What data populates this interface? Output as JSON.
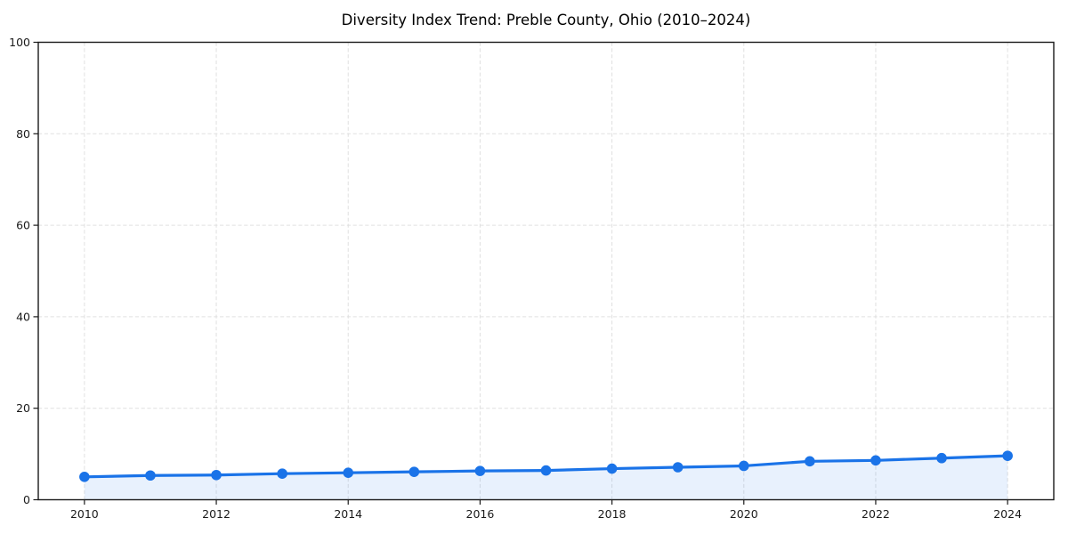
{
  "chart_data": {
    "type": "line",
    "title": "Diversity Index Trend: Preble County, Ohio (2010–2024)",
    "x": [
      2010,
      2011,
      2012,
      2013,
      2014,
      2015,
      2016,
      2017,
      2018,
      2019,
      2020,
      2021,
      2022,
      2023,
      2024
    ],
    "series": [
      {
        "name": "Diversity Index",
        "values": [
          5.0,
          5.3,
          5.4,
          5.7,
          5.9,
          6.1,
          6.3,
          6.4,
          6.8,
          7.1,
          7.4,
          8.4,
          8.6,
          9.1,
          9.6
        ],
        "line_color": "#1a73e8",
        "marker": "circle",
        "area_fill": true,
        "fill_opacity": 0.1
      }
    ],
    "xlabel": "",
    "ylabel": "",
    "xlim": [
      2009.3,
      2024.7
    ],
    "ylim": [
      0,
      100
    ],
    "xticks": [
      2010,
      2012,
      2014,
      2016,
      2018,
      2020,
      2022,
      2024
    ],
    "yticks": [
      0,
      20,
      40,
      60,
      80,
      100
    ],
    "xtick_labels": [
      "2010",
      "2012",
      "2014",
      "2016",
      "2018",
      "2020",
      "2022",
      "2024"
    ],
    "ytick_labels": [
      "0",
      "20",
      "40",
      "60",
      "80",
      "100"
    ],
    "grid": "dashed",
    "grid_color": "#e0e0e0",
    "legend": "none",
    "background": "#ffffff",
    "spine_color": "#1a1a1a",
    "tick_label_color": "#1a1a1a"
  }
}
